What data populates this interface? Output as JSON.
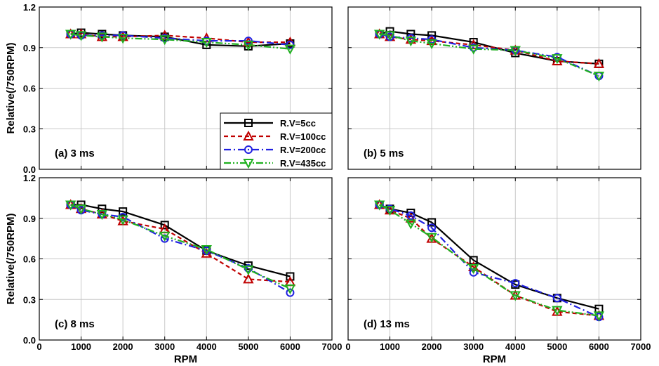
{
  "chart_data": {
    "type": "line",
    "x_label": "RPM",
    "y_label": "Relative(/750RPM)",
    "xlim": [
      0,
      7000
    ],
    "ylim": [
      0.0,
      1.2
    ],
    "x_ticks": [
      0,
      1000,
      2000,
      3000,
      4000,
      5000,
      6000,
      7000
    ],
    "y_ticks": [
      0.0,
      0.3,
      0.6,
      0.9,
      1.2
    ],
    "y_tick_labels": [
      "0.0",
      "0.3",
      "0.6",
      "0.9",
      "1.2"
    ],
    "x": [
      750,
      1000,
      1500,
      2000,
      3000,
      4000,
      5000,
      6000
    ],
    "legend": {
      "placement": "lower-right of panel (a)",
      "entries": [
        "R.V=5cc",
        "R.V=100cc",
        "R.V=200cc",
        "R.V=435cc"
      ]
    },
    "series_styles": [
      {
        "name": "R.V=5cc",
        "color": "#000000",
        "marker": "square",
        "dash": "solid"
      },
      {
        "name": "R.V=100cc",
        "color": "#c00000",
        "marker": "triangle-up",
        "dash": "dashed"
      },
      {
        "name": "R.V=200cc",
        "color": "#2020e0",
        "marker": "circle",
        "dash": "dashdot"
      },
      {
        "name": "R.V=435cc",
        "color": "#20b020",
        "marker": "triangle-down",
        "dash": "dashdotdot"
      }
    ],
    "panels": [
      {
        "label": "(a) 3 ms",
        "series": [
          {
            "name": "R.V=5cc",
            "values": [
              1.0,
              1.01,
              1.0,
              0.99,
              0.98,
              0.92,
              0.91,
              0.93
            ]
          },
          {
            "name": "R.V=100cc",
            "values": [
              1.0,
              1.0,
              0.98,
              0.98,
              0.99,
              0.97,
              0.94,
              0.94
            ]
          },
          {
            "name": "R.V=200cc",
            "values": [
              1.0,
              0.99,
              0.99,
              0.99,
              0.97,
              0.95,
              0.95,
              0.92
            ]
          },
          {
            "name": "R.V=435cc",
            "values": [
              1.0,
              0.99,
              0.98,
              0.97,
              0.96,
              0.94,
              0.92,
              0.89
            ]
          }
        ]
      },
      {
        "label": "(b) 5 ms",
        "series": [
          {
            "name": "R.V=5cc",
            "values": [
              1.0,
              1.02,
              1.0,
              0.99,
              0.94,
              0.86,
              0.8,
              0.78
            ]
          },
          {
            "name": "R.V=100cc",
            "values": [
              1.0,
              0.98,
              0.96,
              0.95,
              0.92,
              0.88,
              0.8,
              0.78
            ]
          },
          {
            "name": "R.V=200cc",
            "values": [
              1.0,
              0.98,
              0.97,
              0.96,
              0.9,
              0.88,
              0.83,
              0.69
            ]
          },
          {
            "name": "R.V=435cc",
            "values": [
              1.0,
              0.99,
              0.95,
              0.93,
              0.89,
              0.88,
              0.82,
              0.69
            ]
          }
        ]
      },
      {
        "label": "(c) 8 ms",
        "series": [
          {
            "name": "R.V=5cc",
            "values": [
              1.0,
              1.0,
              0.97,
              0.95,
              0.85,
              0.66,
              0.55,
              0.47
            ]
          },
          {
            "name": "R.V=100cc",
            "values": [
              1.0,
              0.97,
              0.93,
              0.88,
              0.82,
              0.64,
              0.45,
              0.43
            ]
          },
          {
            "name": "R.V=200cc",
            "values": [
              1.0,
              0.96,
              0.93,
              0.91,
              0.75,
              0.66,
              0.53,
              0.35
            ]
          },
          {
            "name": "R.V=435cc",
            "values": [
              1.0,
              0.97,
              0.93,
              0.89,
              0.77,
              0.67,
              0.52,
              0.38
            ]
          }
        ]
      },
      {
        "label": "(d) 13 ms",
        "series": [
          {
            "name": "R.V=5cc",
            "values": [
              1.0,
              0.97,
              0.94,
              0.87,
              0.59,
              0.41,
              0.31,
              0.23
            ]
          },
          {
            "name": "R.V=100cc",
            "values": [
              1.0,
              0.96,
              0.9,
              0.75,
              0.54,
              0.33,
              0.21,
              0.18
            ]
          },
          {
            "name": "R.V=200cc",
            "values": [
              1.0,
              0.97,
              0.92,
              0.83,
              0.5,
              0.42,
              0.31,
              0.17
            ]
          },
          {
            "name": "R.V=435cc",
            "values": [
              1.0,
              0.96,
              0.86,
              0.76,
              0.53,
              0.33,
              0.22,
              0.18
            ]
          }
        ]
      }
    ]
  }
}
